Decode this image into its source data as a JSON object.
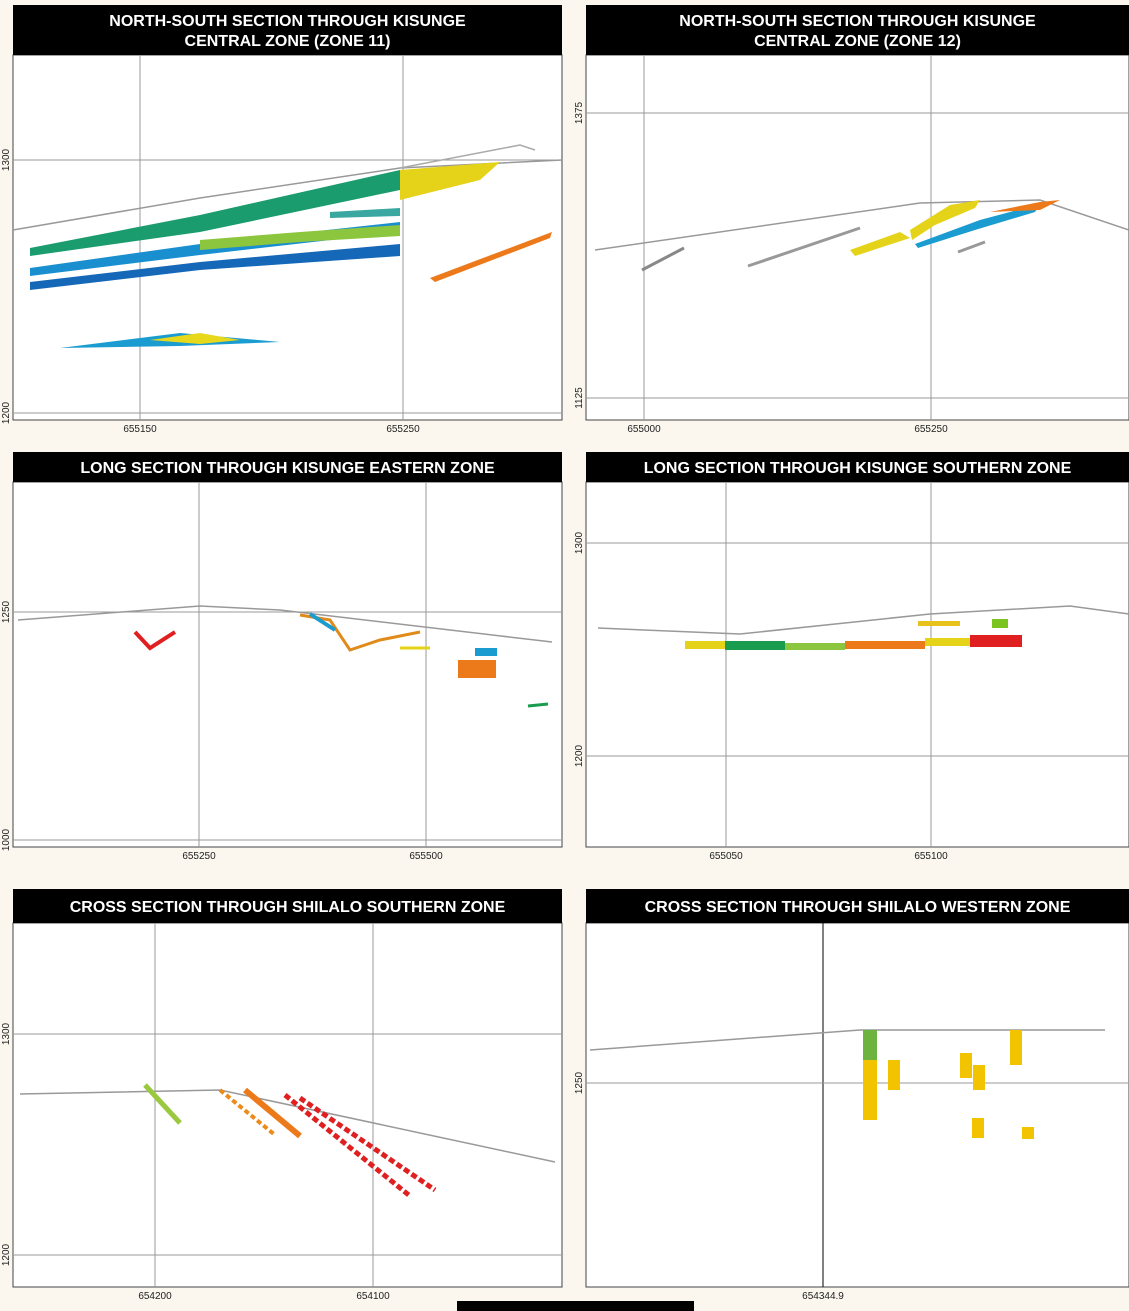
{
  "panels": [
    {
      "title": [
        "NORTH-SOUTH SECTION THROUGH KISUNGE",
        "CENTRAL ZONE (ZONE 11)"
      ],
      "xticks": [
        "655150",
        "655250"
      ],
      "yticks": [
        "1300",
        "1200"
      ]
    },
    {
      "title": [
        "NORTH-SOUTH SECTION THROUGH KISUNGE",
        "CENTRAL ZONE (ZONE 12)"
      ],
      "xticks": [
        "655000",
        "655250"
      ],
      "yticks": [
        "1375",
        "1125"
      ]
    },
    {
      "title": [
        "LONG SECTION THROUGH KISUNGE EASTERN ZONE"
      ],
      "xticks": [
        "655250",
        "655500"
      ],
      "yticks": [
        "1250",
        "1000"
      ]
    },
    {
      "title": [
        "LONG SECTION THROUGH KISUNGE SOUTHERN ZONE"
      ],
      "xticks": [
        "655050",
        "655100"
      ],
      "yticks": [
        "1300",
        "1200"
      ]
    },
    {
      "title": [
        "CROSS SECTION THROUGH SHILALO SOUTHERN ZONE"
      ],
      "xticks": [
        "654200",
        "654100"
      ],
      "yticks": [
        "1300",
        "1200"
      ]
    },
    {
      "title": [
        "CROSS SECTION THROUGH SHILALO WESTERN ZONE"
      ],
      "xticks": [
        "654344.9"
      ],
      "yticks": [
        "1250"
      ]
    }
  ]
}
